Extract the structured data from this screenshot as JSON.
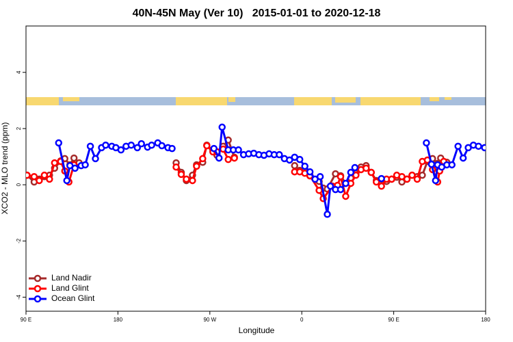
{
  "chart_data": {
    "type": "line",
    "title": "40N-45N May (Ver 10)   2015-01-01 to 2020-12-18",
    "x_label": "Longitude",
    "y_label": "XCO2 - MLO trend (ppm)",
    "xlim": [
      90,
      540
    ],
    "ylim": [
      -4.5,
      5.65
    ],
    "xticks": [
      {
        "value": 90,
        "label": "90 E"
      },
      180,
      {
        "value": 270,
        "label": "90 W"
      },
      {
        "value": 360,
        "label": "0"
      },
      {
        "value": 450,
        "label": "90 E"
      },
      {
        "value": 540,
        "label": "180"
      }
    ],
    "yticks": [
      -4,
      -2,
      0,
      2,
      4
    ],
    "legend": "bottom-left",
    "series": [
      {
        "name": "Land Nadir",
        "color": "#a52a2a",
        "x": [
          91,
          98,
          103,
          108,
          113,
          118,
          124,
          128,
          133,
          137,
          142,
          null,
          237,
          242,
          247,
          253,
          257,
          263,
          267,
          273,
          277,
          283,
          288,
          294,
          null,
          353,
          358,
          363,
          368,
          377,
          381,
          385,
          393,
          398,
          403,
          408,
          413,
          418,
          423,
          428,
          433,
          438,
          443,
          448,
          453,
          458,
          463,
          468,
          473,
          478,
          483,
          488,
          493,
          496,
          502
        ],
        "values": [
          0.34,
          0.1,
          0.2,
          0.29,
          0.34,
          0.59,
          0.85,
          0.93,
          0.71,
          0.95,
          0.78,
          null,
          0.78,
          0.44,
          0.15,
          0.34,
          0.71,
          0.8,
          1.41,
          1.22,
          1.05,
          1.37,
          1.59,
          0.98,
          null,
          0.68,
          0.51,
          0.49,
          0.32,
          0.12,
          -0.12,
          -0.15,
          0.39,
          0.32,
          0.05,
          0.24,
          0.41,
          0.63,
          0.68,
          0.44,
          0.15,
          0.2,
          0.12,
          0.2,
          0.27,
          0.1,
          0.2,
          0.34,
          0.29,
          0.34,
          0.83,
          0.93,
          0.76,
          0.95,
          0.8
        ]
      },
      {
        "name": "Land Glint",
        "color": "#ff0000",
        "x": [
          91,
          98,
          103,
          108,
          113,
          118,
          124,
          128,
          132,
          137,
          null,
          237,
          242,
          247,
          253,
          257,
          263,
          267,
          273,
          277,
          283,
          288,
          294,
          null,
          353,
          358,
          363,
          368,
          377,
          381,
          390,
          395,
          398,
          403,
          408,
          413,
          418,
          423,
          428,
          433,
          438,
          443,
          448,
          453,
          458,
          463,
          468,
          473,
          478,
          483,
          488,
          493,
          495,
          499
        ],
        "values": [
          0.34,
          0.29,
          0.15,
          0.34,
          0.2,
          0.78,
          0.83,
          0.49,
          0.1,
          0.71,
          null,
          0.63,
          0.37,
          0.2,
          0.15,
          0.66,
          0.93,
          1.39,
          1.17,
          1.17,
          1.27,
          0.9,
          0.95,
          null,
          0.46,
          0.46,
          0.41,
          0.32,
          -0.2,
          -0.49,
          -0.05,
          -0.02,
          0.29,
          -0.41,
          0.05,
          0.34,
          0.54,
          0.59,
          0.44,
          0.1,
          -0.05,
          0.2,
          0.2,
          0.34,
          0.29,
          0.2,
          0.34,
          0.2,
          0.83,
          0.88,
          0.54,
          0.1,
          0.49,
          0.83
        ]
      },
      {
        "name": "Ocean Glint",
        "color": "#0000ff",
        "x": [
          122,
          130,
          133,
          138,
          144,
          148,
          153,
          158,
          164,
          168,
          174,
          178,
          183,
          188,
          193,
          199,
          203,
          209,
          213,
          219,
          223,
          229,
          233,
          null,
          274,
          279,
          282,
          288,
          293,
          298,
          303,
          308,
          313,
          318,
          323,
          328,
          333,
          338,
          343,
          348,
          353,
          358,
          363,
          368,
          373,
          378,
          385,
          388,
          393,
          398,
          403,
          408,
          412,
          null,
          438,
          null,
          482,
          487,
          491,
          493,
          497,
          502,
          507,
          513,
          518,
          523,
          528,
          533,
          539
        ],
        "values": [
          1.49,
          0.15,
          0.68,
          0.59,
          0.68,
          0.71,
          1.37,
          0.93,
          1.32,
          1.41,
          1.37,
          1.32,
          1.24,
          1.37,
          1.41,
          1.32,
          1.46,
          1.34,
          1.41,
          1.49,
          1.39,
          1.32,
          1.29,
          null,
          1.29,
          0.95,
          2.05,
          1.24,
          1.24,
          1.24,
          1.07,
          1.1,
          1.12,
          1.07,
          1.05,
          1.1,
          1.07,
          1.07,
          0.93,
          0.88,
          0.98,
          0.9,
          0.66,
          0.46,
          0.2,
          0.29,
          -1.05,
          -0.05,
          -0.17,
          -0.17,
          0.05,
          0.44,
          0.61,
          null,
          0.22,
          null,
          1.49,
          0.73,
          0.15,
          0.71,
          0.63,
          0.71,
          0.71,
          1.37,
          0.95,
          1.32,
          1.41,
          1.37,
          1.32
        ]
      }
    ]
  }
}
